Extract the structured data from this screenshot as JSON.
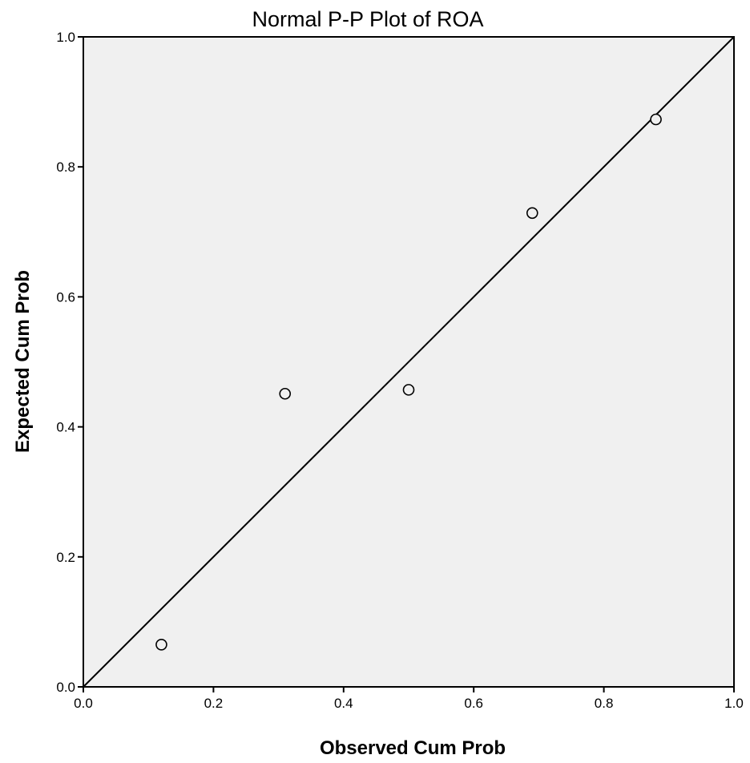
{
  "chart_data": {
    "type": "scatter",
    "title": "Normal P-P Plot of ROA",
    "xlabel": "Observed Cum Prob",
    "ylabel": "Expected Cum Prob",
    "xlim": [
      0.0,
      1.0
    ],
    "ylim": [
      0.0,
      1.0
    ],
    "x_ticks": [
      "0.0",
      "0.2",
      "0.4",
      "0.6",
      "0.8",
      "1.0"
    ],
    "y_ticks": [
      "0.0",
      "0.2",
      "0.4",
      "0.6",
      "0.8",
      "1.0"
    ],
    "grid": false,
    "reference_line": {
      "from": [
        0.0,
        0.0
      ],
      "to": [
        1.0,
        1.0
      ]
    },
    "points": [
      {
        "x": 0.12,
        "y": 0.065
      },
      {
        "x": 0.31,
        "y": 0.451
      },
      {
        "x": 0.5,
        "y": 0.457
      },
      {
        "x": 0.69,
        "y": 0.729
      },
      {
        "x": 0.88,
        "y": 0.873
      }
    ],
    "colors": {
      "plot_background": "#f0f0f0",
      "axis": "#000000",
      "marker_stroke": "#000000",
      "marker_fill": "#f0f0f0"
    }
  }
}
